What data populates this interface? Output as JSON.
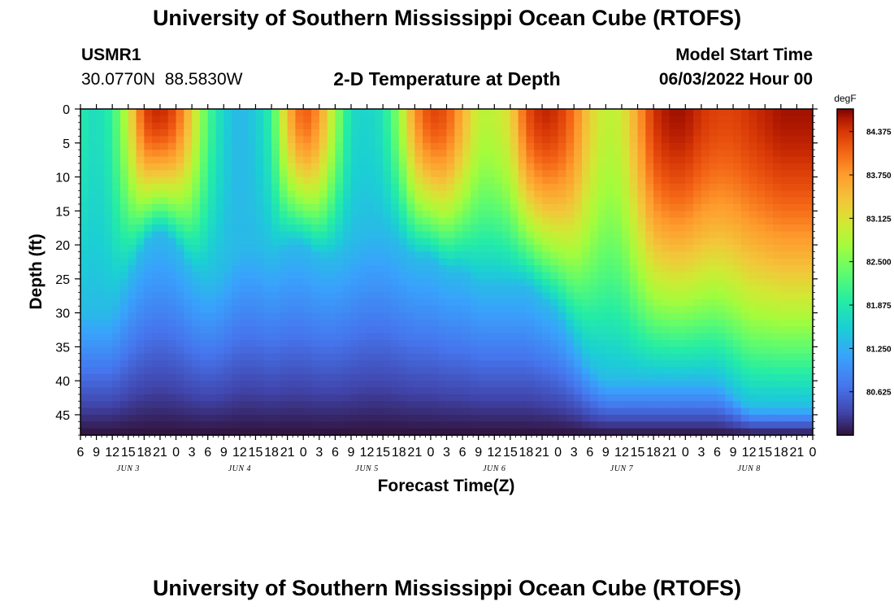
{
  "header": {
    "title": "University of Southern Mississippi Ocean Cube (RTOFS)",
    "station_id": "USMR1",
    "coordinates": "30.0770N  88.5830W",
    "subtitle": "2-D Temperature at Depth",
    "model_start_label": "Model Start Time",
    "model_start_value": "06/03/2022 Hour 00"
  },
  "footer": {
    "title": "University of Southern Mississippi Ocean Cube (RTOFS)"
  },
  "chart_data": {
    "type": "heatmap",
    "title": "2-D Temperature at Depth",
    "xlabel": "Forecast Time(Z)",
    "ylabel": "Depth (ft)",
    "x_tick_labels": [
      "6",
      "9",
      "12",
      "15",
      "18",
      "21",
      "0",
      "3",
      "6",
      "9",
      "12",
      "15",
      "18",
      "21",
      "0",
      "3",
      "6",
      "9",
      "12",
      "15",
      "18",
      "21",
      "0",
      "3",
      "6",
      "9",
      "12",
      "15",
      "18",
      "21",
      "0",
      "3",
      "6",
      "9",
      "12",
      "15",
      "18",
      "21",
      "0",
      "3",
      "6",
      "9",
      "12",
      "15",
      "18",
      "21",
      "0"
    ],
    "x_range_hours": [
      6,
      144
    ],
    "day_labels": [
      {
        "label": "JUN 3",
        "hour": 15
      },
      {
        "label": "JUN 4",
        "hour": 36
      },
      {
        "label": "JUN 5",
        "hour": 60
      },
      {
        "label": "JUN 6",
        "hour": 84
      },
      {
        "label": "JUN 7",
        "hour": 108
      },
      {
        "label": "JUN 8",
        "hour": 132
      }
    ],
    "y_tick_labels": [
      "0",
      "5",
      "10",
      "15",
      "20",
      "25",
      "30",
      "35",
      "40",
      "45"
    ],
    "y_ticks": [
      0,
      5,
      10,
      15,
      20,
      25,
      30,
      35,
      40,
      45
    ],
    "ylim": [
      0,
      48
    ],
    "colorbar": {
      "units": "degF",
      "range": [
        80.0,
        84.7
      ],
      "tick_values": [
        84.375,
        83.75,
        83.125,
        82.5,
        81.875,
        81.25,
        80.625
      ],
      "tick_labels": [
        "84.375",
        "83.750",
        "83.125",
        "82.500",
        "81.875",
        "81.250",
        "80.625"
      ]
    },
    "surface_temp_by_hour": {
      "hours": [
        6,
        9,
        12,
        15,
        18,
        21,
        24,
        27,
        30,
        33,
        36,
        39,
        42,
        45,
        48,
        51,
        54,
        57,
        60,
        63,
        66,
        69,
        72,
        75,
        78,
        81,
        84,
        87,
        90,
        93,
        96,
        99,
        102,
        105,
        108,
        111,
        114,
        117,
        120,
        123,
        126,
        129,
        132,
        135,
        138,
        141,
        144
      ],
      "temps_degF": [
        81.9,
        81.7,
        82.0,
        83.0,
        84.3,
        84.5,
        84.2,
        83.3,
        82.2,
        81.6,
        81.3,
        81.5,
        82.0,
        83.5,
        84.2,
        83.8,
        82.7,
        81.7,
        81.6,
        81.8,
        82.6,
        83.8,
        84.3,
        84.2,
        83.6,
        82.9,
        82.9,
        83.2,
        84.2,
        84.5,
        84.4,
        84.0,
        83.3,
        82.9,
        83.0,
        83.7,
        84.4,
        84.6,
        84.6,
        84.4,
        84.3,
        84.3,
        84.4,
        84.5,
        84.6,
        84.6,
        84.6
      ]
    },
    "mixed_layer_depth_ft_by_hour": {
      "hours": [
        6,
        9,
        12,
        15,
        18,
        21,
        24,
        27,
        30,
        33,
        36,
        39,
        42,
        45,
        48,
        51,
        54,
        57,
        60,
        63,
        66,
        69,
        72,
        75,
        78,
        81,
        84,
        87,
        90,
        93,
        96,
        99,
        102,
        105,
        108,
        111,
        114,
        117,
        120,
        123,
        126,
        129,
        132,
        135,
        138,
        141,
        144
      ],
      "depth_ft": [
        30,
        30,
        30,
        25,
        20,
        18,
        20,
        24,
        26,
        24,
        20,
        20,
        22,
        20,
        20,
        22,
        22,
        20,
        18,
        18,
        20,
        22,
        22,
        24,
        24,
        26,
        26,
        26,
        26,
        28,
        30,
        34,
        38,
        40,
        40,
        40,
        40,
        40,
        40,
        40,
        40,
        42,
        44,
        44,
        44,
        44,
        44
      ]
    },
    "bottom_temp_degF": 80.0
  }
}
